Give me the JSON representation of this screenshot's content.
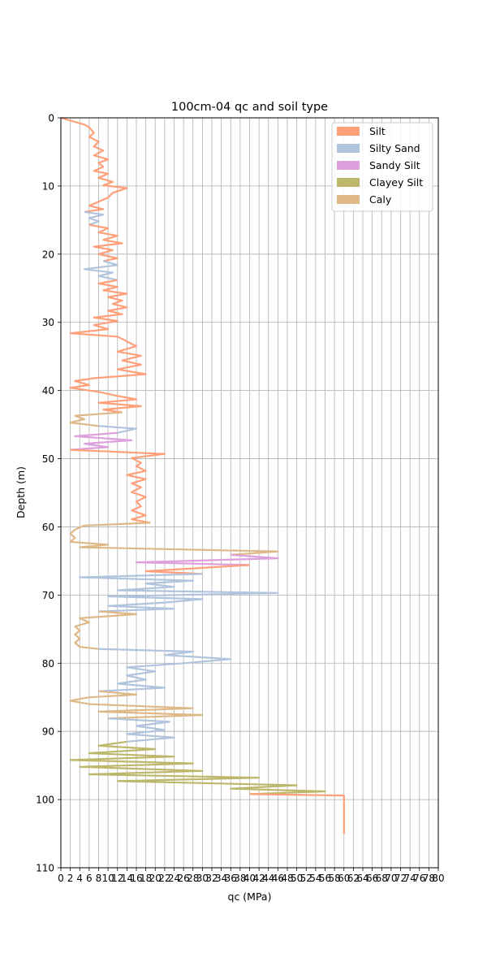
{
  "chart_data": {
    "type": "line",
    "title": "100cm-04 qc and soil type",
    "xlabel": "qc (MPa)",
    "ylabel": "Depth (m)",
    "xlim": [
      0,
      80
    ],
    "ylim": [
      110,
      0
    ],
    "y_inverted": true,
    "grid": true,
    "legend_placement": "top-right",
    "x_ticks": [
      "0",
      "2",
      "4",
      "6",
      "8",
      "10",
      "12",
      "14",
      "16",
      "18",
      "20",
      "22",
      "24",
      "26",
      "28",
      "30",
      "32",
      "34",
      "36",
      "38",
      "40",
      "42",
      "44",
      "46",
      "48",
      "50",
      "52",
      "54",
      "56",
      "58",
      "60",
      "62",
      "64",
      "66",
      "68",
      "70",
      "72",
      "74",
      "76",
      "78",
      "80"
    ],
    "y_ticks": [
      "0",
      "10",
      "20",
      "30",
      "40",
      "50",
      "60",
      "70",
      "80",
      "90",
      "100",
      "110"
    ],
    "legend": [
      {
        "name": "Silt",
        "color": "#ffa07a"
      },
      {
        "name": "Silty Sand",
        "color": "#b0c4de"
      },
      {
        "name": "Sandy Silt",
        "color": "#dda0dd"
      },
      {
        "name": "Clayey Silt",
        "color": "#bdb76b"
      },
      {
        "name": "Caly",
        "color": "#deb887"
      }
    ],
    "segments": [
      {
        "soil": "Silt",
        "points": [
          [
            0,
            0
          ],
          [
            1,
            0.2
          ],
          [
            3,
            0.6
          ],
          [
            5,
            1.0
          ],
          [
            6,
            1.4
          ],
          [
            7,
            2.2
          ],
          [
            6,
            2.8
          ],
          [
            8,
            3.5
          ],
          [
            7,
            4.2
          ],
          [
            9,
            4.8
          ],
          [
            7,
            5.5
          ],
          [
            10,
            6.1
          ],
          [
            8,
            6.6
          ],
          [
            9,
            7.2
          ],
          [
            7,
            7.8
          ],
          [
            10,
            8.2
          ],
          [
            8,
            8.8
          ],
          [
            11,
            9.4
          ],
          [
            9,
            9.9
          ],
          [
            14,
            10.3
          ],
          [
            11,
            11.0
          ],
          [
            10,
            11.7
          ],
          [
            8,
            12.3
          ],
          [
            6,
            12.9
          ],
          [
            9,
            13.4
          ],
          [
            5,
            13.8
          ]
        ]
      },
      {
        "soil": "Silty Sand",
        "points": [
          [
            5,
            13.8
          ],
          [
            9,
            14.2
          ],
          [
            6,
            14.7
          ],
          [
            8,
            15.2
          ],
          [
            6,
            15.7
          ]
        ]
      },
      {
        "soil": "Silt",
        "points": [
          [
            6,
            15.7
          ],
          [
            10,
            16.2
          ],
          [
            8,
            16.8
          ],
          [
            12,
            17.3
          ],
          [
            9,
            17.9
          ],
          [
            13,
            18.4
          ],
          [
            7,
            18.9
          ],
          [
            11,
            19.4
          ],
          [
            8,
            20.0
          ],
          [
            12,
            20.6
          ],
          [
            9,
            21.0
          ]
        ]
      },
      {
        "soil": "Silty Sand",
        "points": [
          [
            9,
            21.0
          ],
          [
            12,
            21.6
          ],
          [
            5,
            22.2
          ],
          [
            11,
            22.7
          ],
          [
            8,
            23.2
          ],
          [
            12,
            23.8
          ]
        ]
      },
      {
        "soil": "Silt",
        "points": [
          [
            12,
            23.8
          ],
          [
            8,
            24.3
          ],
          [
            12,
            24.8
          ],
          [
            9,
            25.3
          ],
          [
            14,
            25.8
          ],
          [
            10,
            26.3
          ],
          [
            13,
            26.8
          ],
          [
            11,
            27.3
          ],
          [
            14,
            27.8
          ],
          [
            10,
            28.3
          ],
          [
            13,
            28.8
          ],
          [
            7,
            29.3
          ],
          [
            12,
            29.8
          ],
          [
            7,
            30.4
          ],
          [
            10,
            31.0
          ],
          [
            2,
            31.6
          ],
          [
            12,
            32.1
          ],
          [
            14,
            32.8
          ],
          [
            16,
            33.5
          ],
          [
            12,
            34.3
          ],
          [
            17,
            34.9
          ],
          [
            13,
            35.6
          ],
          [
            17,
            36.2
          ],
          [
            12,
            36.9
          ],
          [
            18,
            37.6
          ],
          [
            7,
            38.2
          ],
          [
            3,
            38.6
          ],
          [
            6,
            39.2
          ],
          [
            2,
            39.6
          ],
          [
            8,
            40.2
          ],
          [
            12,
            40.8
          ],
          [
            16,
            41.3
          ],
          [
            8,
            41.8
          ],
          [
            17,
            42.3
          ],
          [
            9,
            42.8
          ],
          [
            13,
            43.2
          ]
        ]
      },
      {
        "soil": "Caly",
        "points": [
          [
            13,
            43.2
          ],
          [
            3,
            43.7
          ],
          [
            5,
            44.2
          ],
          [
            2,
            44.7
          ],
          [
            8,
            45.2
          ]
        ]
      },
      {
        "soil": "Silty Sand",
        "points": [
          [
            8,
            45.2
          ],
          [
            16,
            45.6
          ],
          [
            12,
            46.2
          ]
        ]
      },
      {
        "soil": "Sandy Silt",
        "points": [
          [
            12,
            46.2
          ],
          [
            3,
            46.7
          ],
          [
            15,
            47.3
          ],
          [
            5,
            47.8
          ],
          [
            10,
            48.3
          ],
          [
            2,
            48.7
          ]
        ]
      },
      {
        "soil": "Silt",
        "points": [
          [
            2,
            48.7
          ],
          [
            22,
            49.3
          ],
          [
            15,
            49.9
          ],
          [
            17,
            50.6
          ],
          [
            16,
            51.1
          ],
          [
            18,
            51.8
          ],
          [
            14,
            52.4
          ],
          [
            18,
            53.0
          ],
          [
            15,
            53.6
          ],
          [
            17,
            54.2
          ],
          [
            15,
            54.9
          ],
          [
            18,
            55.6
          ],
          [
            16,
            56.3
          ],
          [
            17,
            57.0
          ],
          [
            15,
            57.6
          ],
          [
            18,
            58.3
          ],
          [
            15,
            58.9
          ],
          [
            19,
            59.4
          ]
        ]
      },
      {
        "soil": "Caly",
        "points": [
          [
            19,
            59.4
          ],
          [
            5,
            59.8
          ],
          [
            3,
            60.4
          ],
          [
            2,
            61.0
          ],
          [
            3,
            61.6
          ],
          [
            2,
            62.2
          ],
          [
            10,
            62.6
          ],
          [
            4,
            63.0
          ],
          [
            46,
            63.6
          ],
          [
            36,
            64.1
          ]
        ]
      },
      {
        "soil": "Sandy Silt",
        "points": [
          [
            36,
            64.1
          ],
          [
            46,
            64.6
          ],
          [
            16,
            65.2
          ],
          [
            40,
            65.6
          ]
        ]
      },
      {
        "soil": "Silt",
        "points": [
          [
            40,
            65.6
          ],
          [
            28,
            66.1
          ],
          [
            18,
            66.5
          ],
          [
            30,
            66.9
          ]
        ]
      },
      {
        "soil": "Silty Sand",
        "points": [
          [
            30,
            66.9
          ],
          [
            4,
            67.4
          ],
          [
            28,
            67.9
          ],
          [
            18,
            68.3
          ],
          [
            24,
            68.8
          ],
          [
            12,
            69.3
          ],
          [
            46,
            69.7
          ],
          [
            10,
            70.2
          ],
          [
            30,
            70.6
          ],
          [
            22,
            71.1
          ],
          [
            10,
            71.6
          ],
          [
            24,
            72.0
          ],
          [
            8,
            72.4
          ]
        ]
      },
      {
        "soil": "Caly",
        "points": [
          [
            8,
            72.4
          ],
          [
            16,
            72.8
          ],
          [
            4,
            73.4
          ],
          [
            6,
            74.0
          ],
          [
            3,
            74.6
          ],
          [
            4,
            75.2
          ],
          [
            3,
            75.8
          ],
          [
            4,
            76.4
          ],
          [
            3,
            77.0
          ],
          [
            4,
            77.6
          ],
          [
            8,
            77.9
          ]
        ]
      },
      {
        "soil": "Silty Sand",
        "points": [
          [
            8,
            77.9
          ],
          [
            28,
            78.3
          ],
          [
            22,
            78.8
          ],
          [
            36,
            79.4
          ],
          [
            26,
            80.0
          ],
          [
            14,
            80.6
          ],
          [
            20,
            81.2
          ],
          [
            14,
            81.8
          ],
          [
            18,
            82.4
          ],
          [
            12,
            83.0
          ],
          [
            22,
            83.6
          ],
          [
            8,
            84.1
          ]
        ]
      },
      {
        "soil": "Caly",
        "points": [
          [
            8,
            84.1
          ],
          [
            16,
            84.6
          ],
          [
            6,
            85.0
          ],
          [
            2,
            85.5
          ],
          [
            6,
            86.0
          ],
          [
            28,
            86.6
          ],
          [
            8,
            87.1
          ],
          [
            30,
            87.6
          ],
          [
            10,
            88.1
          ]
        ]
      },
      {
        "soil": "Silty Sand",
        "points": [
          [
            10,
            88.1
          ],
          [
            23,
            88.6
          ],
          [
            16,
            89.2
          ],
          [
            22,
            89.8
          ],
          [
            14,
            90.4
          ],
          [
            24,
            90.9
          ],
          [
            14,
            91.5
          ]
        ]
      },
      {
        "soil": "Clayey Silt",
        "points": [
          [
            14,
            91.5
          ],
          [
            8,
            92.1
          ],
          [
            20,
            92.6
          ],
          [
            6,
            93.2
          ],
          [
            24,
            93.7
          ],
          [
            2,
            94.2
          ],
          [
            28,
            94.7
          ],
          [
            4,
            95.2
          ],
          [
            30,
            95.8
          ],
          [
            6,
            96.3
          ],
          [
            42,
            96.8
          ],
          [
            12,
            97.3
          ],
          [
            50,
            97.9
          ],
          [
            36,
            98.4
          ],
          [
            56,
            98.8
          ],
          [
            40,
            99.2
          ]
        ]
      },
      {
        "soil": "Silt",
        "points": [
          [
            40,
            99.2
          ],
          [
            60,
            99.4
          ],
          [
            60,
            105
          ]
        ]
      }
    ]
  }
}
